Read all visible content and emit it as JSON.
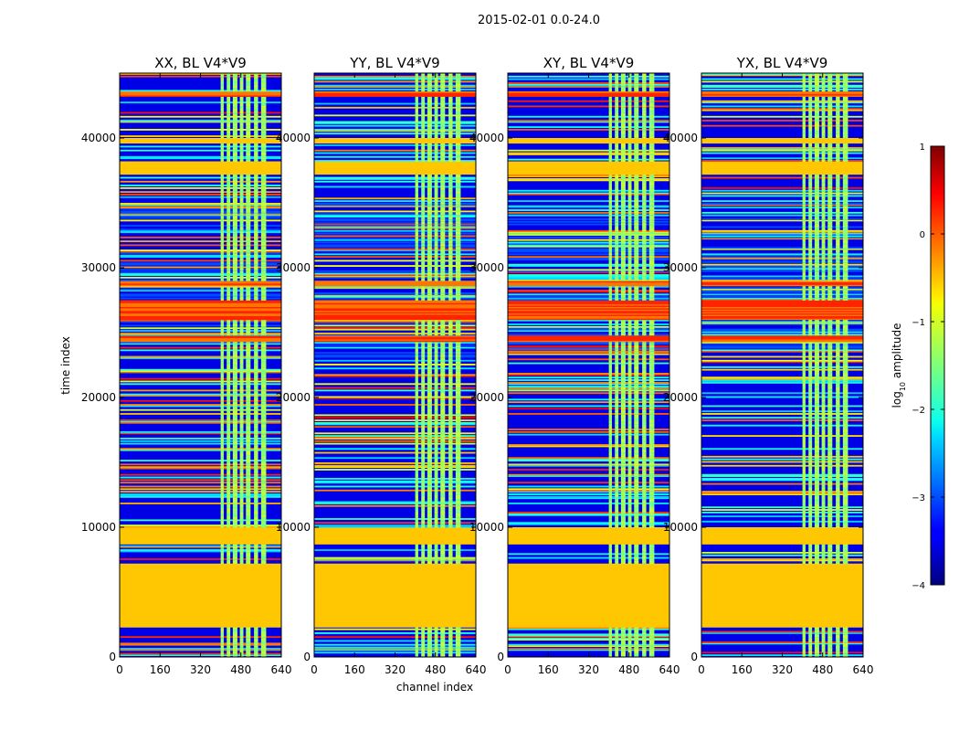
{
  "figure": {
    "suptitle": "2015-02-01 0.0-24.0"
  },
  "chart_data": {
    "type": "heatmap",
    "xlabel": "channel index",
    "ylabel": "time index",
    "xlim": [
      0,
      640
    ],
    "ylim": [
      0,
      45000
    ],
    "x_ticks": [
      "0",
      "160",
      "320",
      "480",
      "640"
    ],
    "y_ticks": [
      "0",
      "10000",
      "20000",
      "30000",
      "40000"
    ],
    "y_tick_values": [
      0,
      10000,
      20000,
      30000,
      40000
    ],
    "x_tick_values": [
      0,
      160,
      320,
      480,
      640
    ],
    "panels": [
      {
        "title": "XX, BL V4*V9",
        "polarization": "XX"
      },
      {
        "title": "YY, BL V4*V9",
        "polarization": "YY"
      },
      {
        "title": "XY, BL V4*V9",
        "polarization": "XY"
      },
      {
        "title": "YX, BL V4*V9",
        "polarization": "YX"
      }
    ],
    "colorbar": {
      "label": "log10 amplitude",
      "label_main": "log",
      "label_sub": "10",
      "label_rest": " amplitude",
      "range": [
        -4,
        1
      ],
      "ticks": [
        "1",
        "0",
        "−1",
        "−2",
        "−3",
        "−4"
      ],
      "tick_values": [
        1,
        0,
        -1,
        -2,
        -3,
        -4
      ],
      "colormap": "jet"
    },
    "flagged_time_ranges": [
      [
        2300,
        7200
      ],
      [
        8700,
        10000
      ],
      [
        37200,
        38200
      ],
      [
        39600,
        40000
      ]
    ],
    "rfi_channel_range": [
      400,
      600
    ],
    "background_level": -3.5,
    "flag_level": -0.6,
    "rfi_level": -1.6,
    "bright_bands": [
      [
        24300,
        24800
      ],
      [
        26000,
        27500
      ],
      [
        28600,
        29000
      ],
      [
        43200,
        43600
      ]
    ],
    "colors": {
      "jet_dark_blue": "#00007f",
      "jet_blue": "#0000ff",
      "jet_cyan": "#00ffff",
      "jet_green": "#7fff7f",
      "jet_yellow": "#ffff00",
      "jet_red": "#ff0000",
      "jet_dark_red": "#7f0000"
    }
  }
}
